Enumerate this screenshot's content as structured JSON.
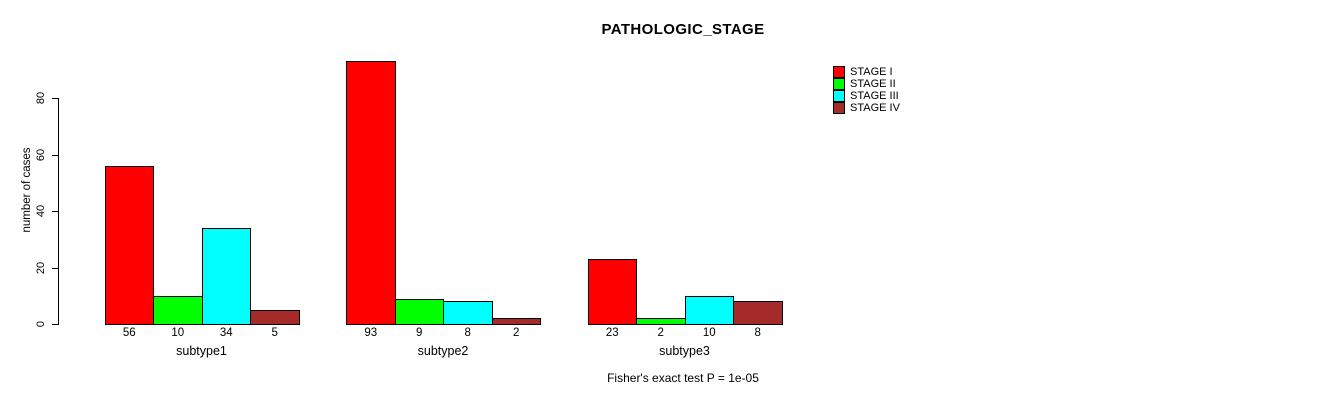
{
  "chart_data": {
    "type": "bar",
    "title": "PATHOLOGIC_STAGE",
    "ylabel": "number of cases",
    "xlabel": "",
    "categories": [
      "subtype1",
      "subtype2",
      "subtype3"
    ],
    "series": [
      {
        "name": "STAGE I",
        "color": "#FF0000",
        "values": [
          56,
          93,
          23
        ]
      },
      {
        "name": "STAGE II",
        "color": "#00FF00",
        "values": [
          10,
          9,
          2
        ]
      },
      {
        "name": "STAGE III",
        "color": "#00FFFF",
        "values": [
          34,
          8,
          10
        ]
      },
      {
        "name": "STAGE IV",
        "color": "#A52A2A",
        "values": [
          5,
          2,
          8
        ]
      }
    ],
    "bar_value_labels": {
      "subtype1": [
        56,
        10,
        34,
        5
      ],
      "subtype2": [
        93,
        9,
        8,
        2
      ],
      "subtype3": [
        23,
        2,
        10,
        8
      ]
    },
    "y_ticks": [
      0,
      20,
      40,
      60,
      80
    ],
    "ylim": [
      0,
      93
    ],
    "grid": false,
    "legend_position": "top-right",
    "annotation": "Fisher's exact test P = 1e-05",
    "axis_color": "#000000",
    "background_color": "#FFFFFF"
  }
}
